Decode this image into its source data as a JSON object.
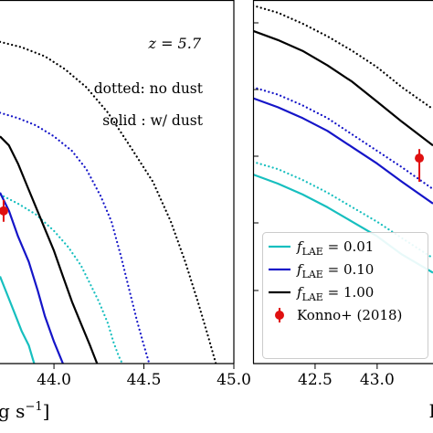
{
  "chart_data": [
    {
      "type": "line",
      "panel": "left",
      "annotations": [
        "z = 5.7",
        "dotted: no dust",
        "solid : w/ dust"
      ],
      "xlabel_fragment": "g s",
      "xlabel_superscript": "−1",
      "xlabel_bracket": "]",
      "xlim": [
        43.7,
        45.0
      ],
      "ylim": [
        0,
        1
      ],
      "xticks": [
        "44.0",
        "44.5",
        "45.0"
      ],
      "xtick_values": [
        44.0,
        44.5,
        45.0
      ],
      "colors": {
        "cyan": "#17bfbf",
        "blue": "#1515c8",
        "black": "#000000",
        "red": "#e01010"
      },
      "series": [
        {
          "color": "black",
          "style": "dotted",
          "x": [
            43.7,
            43.82,
            43.95,
            44.06,
            44.18,
            44.3,
            44.42,
            44.55,
            44.65,
            44.73,
            44.8,
            44.86,
            44.9
          ],
          "y": [
            0.885,
            0.87,
            0.845,
            0.81,
            0.76,
            0.69,
            0.6,
            0.5,
            0.39,
            0.28,
            0.17,
            0.07,
            0.0
          ]
        },
        {
          "color": "blue",
          "style": "dotted",
          "x": [
            43.7,
            43.8,
            43.9,
            44.0,
            44.1,
            44.18,
            44.26,
            44.32,
            44.37,
            44.42,
            44.46,
            44.5,
            44.53
          ],
          "y": [
            0.69,
            0.675,
            0.655,
            0.625,
            0.585,
            0.535,
            0.46,
            0.39,
            0.3,
            0.2,
            0.12,
            0.05,
            0.0
          ]
        },
        {
          "color": "cyan",
          "style": "dotted",
          "x": [
            43.7,
            43.8,
            43.9,
            44.0,
            44.08,
            44.15,
            44.2,
            44.25,
            44.3,
            44.33,
            44.36,
            44.38
          ],
          "y": [
            0.465,
            0.44,
            0.41,
            0.365,
            0.32,
            0.27,
            0.22,
            0.17,
            0.11,
            0.06,
            0.02,
            0.0
          ]
        },
        {
          "color": "black",
          "style": "solid",
          "x": [
            43.7,
            43.75,
            43.8,
            43.85,
            43.9,
            43.95,
            44.0,
            44.05,
            44.1,
            44.15,
            44.2,
            44.24
          ],
          "y": [
            0.625,
            0.6,
            0.55,
            0.49,
            0.43,
            0.37,
            0.31,
            0.24,
            0.17,
            0.11,
            0.05,
            0.0
          ]
        },
        {
          "color": "blue",
          "style": "solid",
          "x": [
            43.7,
            43.75,
            43.8,
            43.86,
            43.91,
            43.95,
            44.0,
            44.05
          ],
          "y": [
            0.47,
            0.42,
            0.35,
            0.28,
            0.2,
            0.13,
            0.06,
            0.0
          ]
        },
        {
          "color": "cyan",
          "style": "solid",
          "x": [
            43.7,
            43.74,
            43.78,
            43.82,
            43.86,
            43.89
          ],
          "y": [
            0.24,
            0.19,
            0.14,
            0.09,
            0.05,
            0.0
          ]
        }
      ],
      "points": [
        {
          "x": 43.72,
          "y": 0.42,
          "yerr_low": 0.03,
          "yerr_high": 0.03,
          "color": "red"
        }
      ]
    },
    {
      "type": "line",
      "panel": "right",
      "xlim": [
        42.0,
        43.45
      ],
      "ylim": [
        0,
        1
      ],
      "xticks": [
        "42.5",
        "43.0"
      ],
      "xtick_values": [
        42.5,
        43.0
      ],
      "xlabel_fragment": "l",
      "series": [
        {
          "color": "black",
          "style": "dotted",
          "x": [
            42.0,
            42.2,
            42.4,
            42.6,
            42.8,
            43.0,
            43.2,
            43.45
          ],
          "y": [
            0.985,
            0.965,
            0.935,
            0.9,
            0.86,
            0.815,
            0.76,
            0.7
          ]
        },
        {
          "color": "black",
          "style": "solid",
          "x": [
            42.0,
            42.2,
            42.4,
            42.6,
            42.8,
            43.0,
            43.2,
            43.45
          ],
          "y": [
            0.915,
            0.89,
            0.86,
            0.82,
            0.775,
            0.72,
            0.665,
            0.6
          ]
        },
        {
          "color": "blue",
          "style": "dotted",
          "x": [
            42.0,
            42.2,
            42.4,
            42.6,
            42.8,
            43.0,
            43.2,
            43.45
          ],
          "y": [
            0.76,
            0.74,
            0.71,
            0.675,
            0.63,
            0.585,
            0.54,
            0.48
          ]
        },
        {
          "color": "blue",
          "style": "solid",
          "x": [
            42.0,
            42.2,
            42.4,
            42.6,
            42.8,
            43.0,
            43.2,
            43.45
          ],
          "y": [
            0.73,
            0.705,
            0.675,
            0.64,
            0.595,
            0.55,
            0.5,
            0.44
          ]
        },
        {
          "color": "cyan",
          "style": "dotted",
          "x": [
            42.0,
            42.2,
            42.4,
            42.6,
            42.8,
            43.0,
            43.2,
            43.45
          ],
          "y": [
            0.555,
            0.535,
            0.505,
            0.47,
            0.43,
            0.39,
            0.345,
            0.29
          ]
        },
        {
          "color": "cyan",
          "style": "solid",
          "x": [
            42.0,
            42.2,
            42.4,
            42.6,
            42.8,
            43.0,
            43.2,
            43.45
          ],
          "y": [
            0.52,
            0.495,
            0.465,
            0.43,
            0.39,
            0.35,
            0.3,
            0.25
          ]
        }
      ],
      "points": [
        {
          "x": 43.34,
          "y": 0.565,
          "yerr_low": 0.065,
          "yerr_high": 0.025,
          "color": "red"
        }
      ],
      "legend": {
        "placement": "bottom-left",
        "entries": [
          {
            "label": "f",
            "subscript": "LAE",
            "value": " = 0.01",
            "color": "cyan",
            "marker": "line"
          },
          {
            "label": "f",
            "subscript": "LAE",
            "value": " = 0.10",
            "color": "blue",
            "marker": "line"
          },
          {
            "label": "f",
            "subscript": "LAE",
            "value": " = 1.00",
            "color": "black",
            "marker": "line"
          },
          {
            "label": "Konno+ (2018)",
            "color": "red",
            "marker": "errorbar"
          }
        ]
      }
    }
  ]
}
